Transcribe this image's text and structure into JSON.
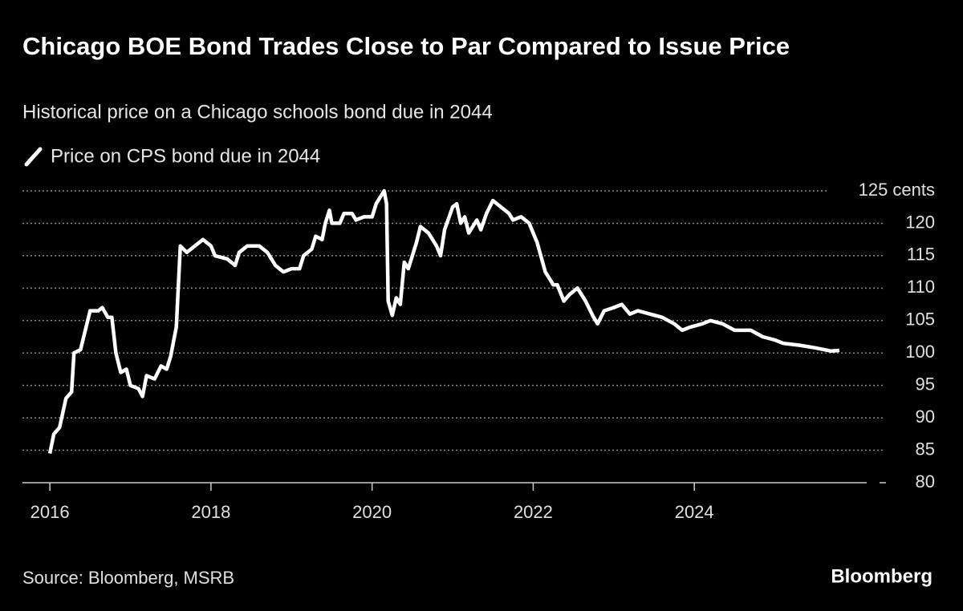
{
  "chart_data": {
    "type": "line",
    "title": "Chicago BOE Bond Trades Close to Par Compared to Issue Price",
    "subtitle": "Historical price on a Chicago schools bond due in 2044",
    "source": "Source: Bloomberg, MSRB",
    "brand": "Bloomberg",
    "xlim": [
      2015.66,
      2026.14
    ],
    "xticks": [
      2016,
      2018,
      2020,
      2022,
      2024
    ],
    "ylim": [
      80,
      125
    ],
    "yticks": [
      80,
      85,
      90,
      95,
      100,
      105,
      110,
      115,
      120,
      {
        "value": 125,
        "label": "125 cents"
      }
    ],
    "grid": true,
    "series": [
      {
        "name": "Price on CPS bond due in 2044",
        "color": "#ffffff",
        "x": [
          2016.0,
          2016.05,
          2016.12,
          2016.2,
          2016.27,
          2016.3,
          2016.38,
          2016.45,
          2016.5,
          2016.6,
          2016.65,
          2016.72,
          2016.77,
          2016.82,
          2016.88,
          2016.95,
          2017.0,
          2017.1,
          2017.15,
          2017.2,
          2017.3,
          2017.38,
          2017.45,
          2017.5,
          2017.57,
          2017.62,
          2017.7,
          2017.8,
          2017.9,
          2018.0,
          2018.05,
          2018.2,
          2018.3,
          2018.35,
          2018.45,
          2018.6,
          2018.7,
          2018.8,
          2018.9,
          2019.0,
          2019.1,
          2019.15,
          2019.25,
          2019.3,
          2019.38,
          2019.42,
          2019.47,
          2019.5,
          2019.6,
          2019.65,
          2019.75,
          2019.8,
          2019.9,
          2020.0,
          2020.05,
          2020.15,
          2020.18,
          2020.2,
          2020.25,
          2020.3,
          2020.35,
          2020.4,
          2020.45,
          2020.55,
          2020.6,
          2020.7,
          2020.8,
          2020.85,
          2020.9,
          2021.0,
          2021.05,
          2021.1,
          2021.15,
          2021.2,
          2021.3,
          2021.35,
          2021.42,
          2021.5,
          2021.6,
          2021.7,
          2021.75,
          2021.85,
          2021.95,
          2022.05,
          2022.15,
          2022.25,
          2022.3,
          2022.38,
          2022.45,
          2022.55,
          2022.65,
          2022.75,
          2022.8,
          2022.88,
          2023.0,
          2023.1,
          2023.2,
          2023.3,
          2023.45,
          2023.6,
          2023.75,
          2023.85,
          2023.95,
          2024.1,
          2024.2,
          2024.35,
          2024.5,
          2024.7,
          2024.85,
          2025.0,
          2025.1,
          2025.3,
          2025.5,
          2025.7,
          2025.8
        ],
        "values": [
          84.5,
          87.5,
          88.5,
          93,
          94,
          100,
          100.5,
          104,
          106.5,
          106.5,
          107,
          105.5,
          105.5,
          100,
          97,
          97.5,
          95,
          94.5,
          93.3,
          96.5,
          96,
          98,
          97.5,
          99.5,
          104,
          116.5,
          115.5,
          116.5,
          117.5,
          116.5,
          115,
          114.5,
          113.5,
          115.5,
          116.5,
          116.5,
          115.5,
          113.5,
          112.5,
          113,
          113,
          115,
          116,
          118,
          117.5,
          120,
          122,
          120,
          120,
          121.5,
          121.5,
          120.5,
          121,
          121,
          123,
          125,
          123,
          108,
          105.8,
          108.5,
          107.5,
          114,
          113,
          117,
          119.5,
          118.5,
          116.5,
          115,
          119,
          122.5,
          123,
          120,
          121,
          118.5,
          120.5,
          119,
          121.5,
          123.5,
          122.5,
          121.5,
          120.5,
          121,
          120,
          117,
          112.5,
          110.5,
          110.5,
          108,
          109,
          110,
          108,
          105.5,
          104.5,
          106.5,
          107,
          107.5,
          106,
          106.5,
          106,
          105.5,
          104.5,
          103.5,
          104,
          104.5,
          105,
          104.5,
          103.5,
          103.5,
          102.5,
          102,
          101.5,
          101.2,
          100.8,
          100.3,
          100.4
        ]
      }
    ]
  }
}
